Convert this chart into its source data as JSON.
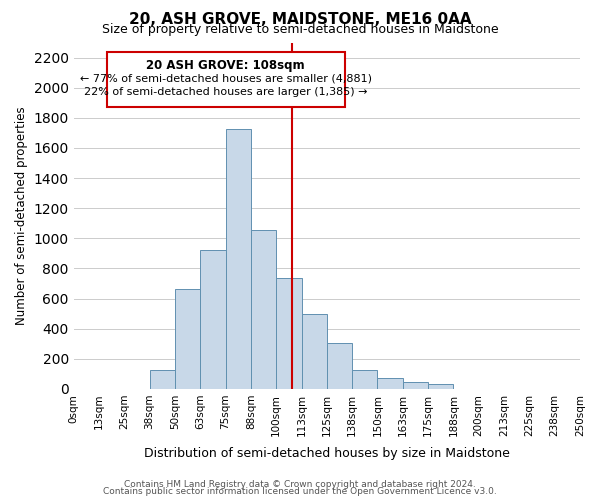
{
  "title": "20, ASH GROVE, MAIDSTONE, ME16 0AA",
  "subtitle": "Size of property relative to semi-detached houses in Maidstone",
  "xlabel": "Distribution of semi-detached houses by size in Maidstone",
  "ylabel": "Number of semi-detached properties",
  "footer_line1": "Contains HM Land Registry data © Crown copyright and database right 2024.",
  "footer_line2": "Contains public sector information licensed under the Open Government Licence v3.0.",
  "bar_labels": [
    "0sqm",
    "13sqm",
    "25sqm",
    "38sqm",
    "50sqm",
    "63sqm",
    "75sqm",
    "88sqm",
    "100sqm",
    "113sqm",
    "125sqm",
    "138sqm",
    "150sqm",
    "163sqm",
    "175sqm",
    "188sqm",
    "200sqm",
    "213sqm",
    "225sqm",
    "238sqm",
    "250sqm"
  ],
  "bar_values": [
    0,
    0,
    0,
    125,
    665,
    925,
    1725,
    1055,
    735,
    500,
    305,
    125,
    70,
    45,
    30,
    0,
    0,
    0,
    0,
    0
  ],
  "bar_color": "#c8d8e8",
  "bar_edge_color": "#6090b0",
  "property_line_x": 108,
  "property_line_color": "#cc0000",
  "annotation_title": "20 ASH GROVE: 108sqm",
  "annotation_line1": "← 77% of semi-detached houses are smaller (4,881)",
  "annotation_line2": "22% of semi-detached houses are larger (1,385) →",
  "annotation_box_color": "#ffffff",
  "annotation_box_edge": "#cc0000",
  "ylim": [
    0,
    2300
  ],
  "yticks": [
    0,
    200,
    400,
    600,
    800,
    1000,
    1200,
    1400,
    1600,
    1800,
    2000,
    2200
  ],
  "background_color": "#ffffff",
  "grid_color": "#cccccc"
}
